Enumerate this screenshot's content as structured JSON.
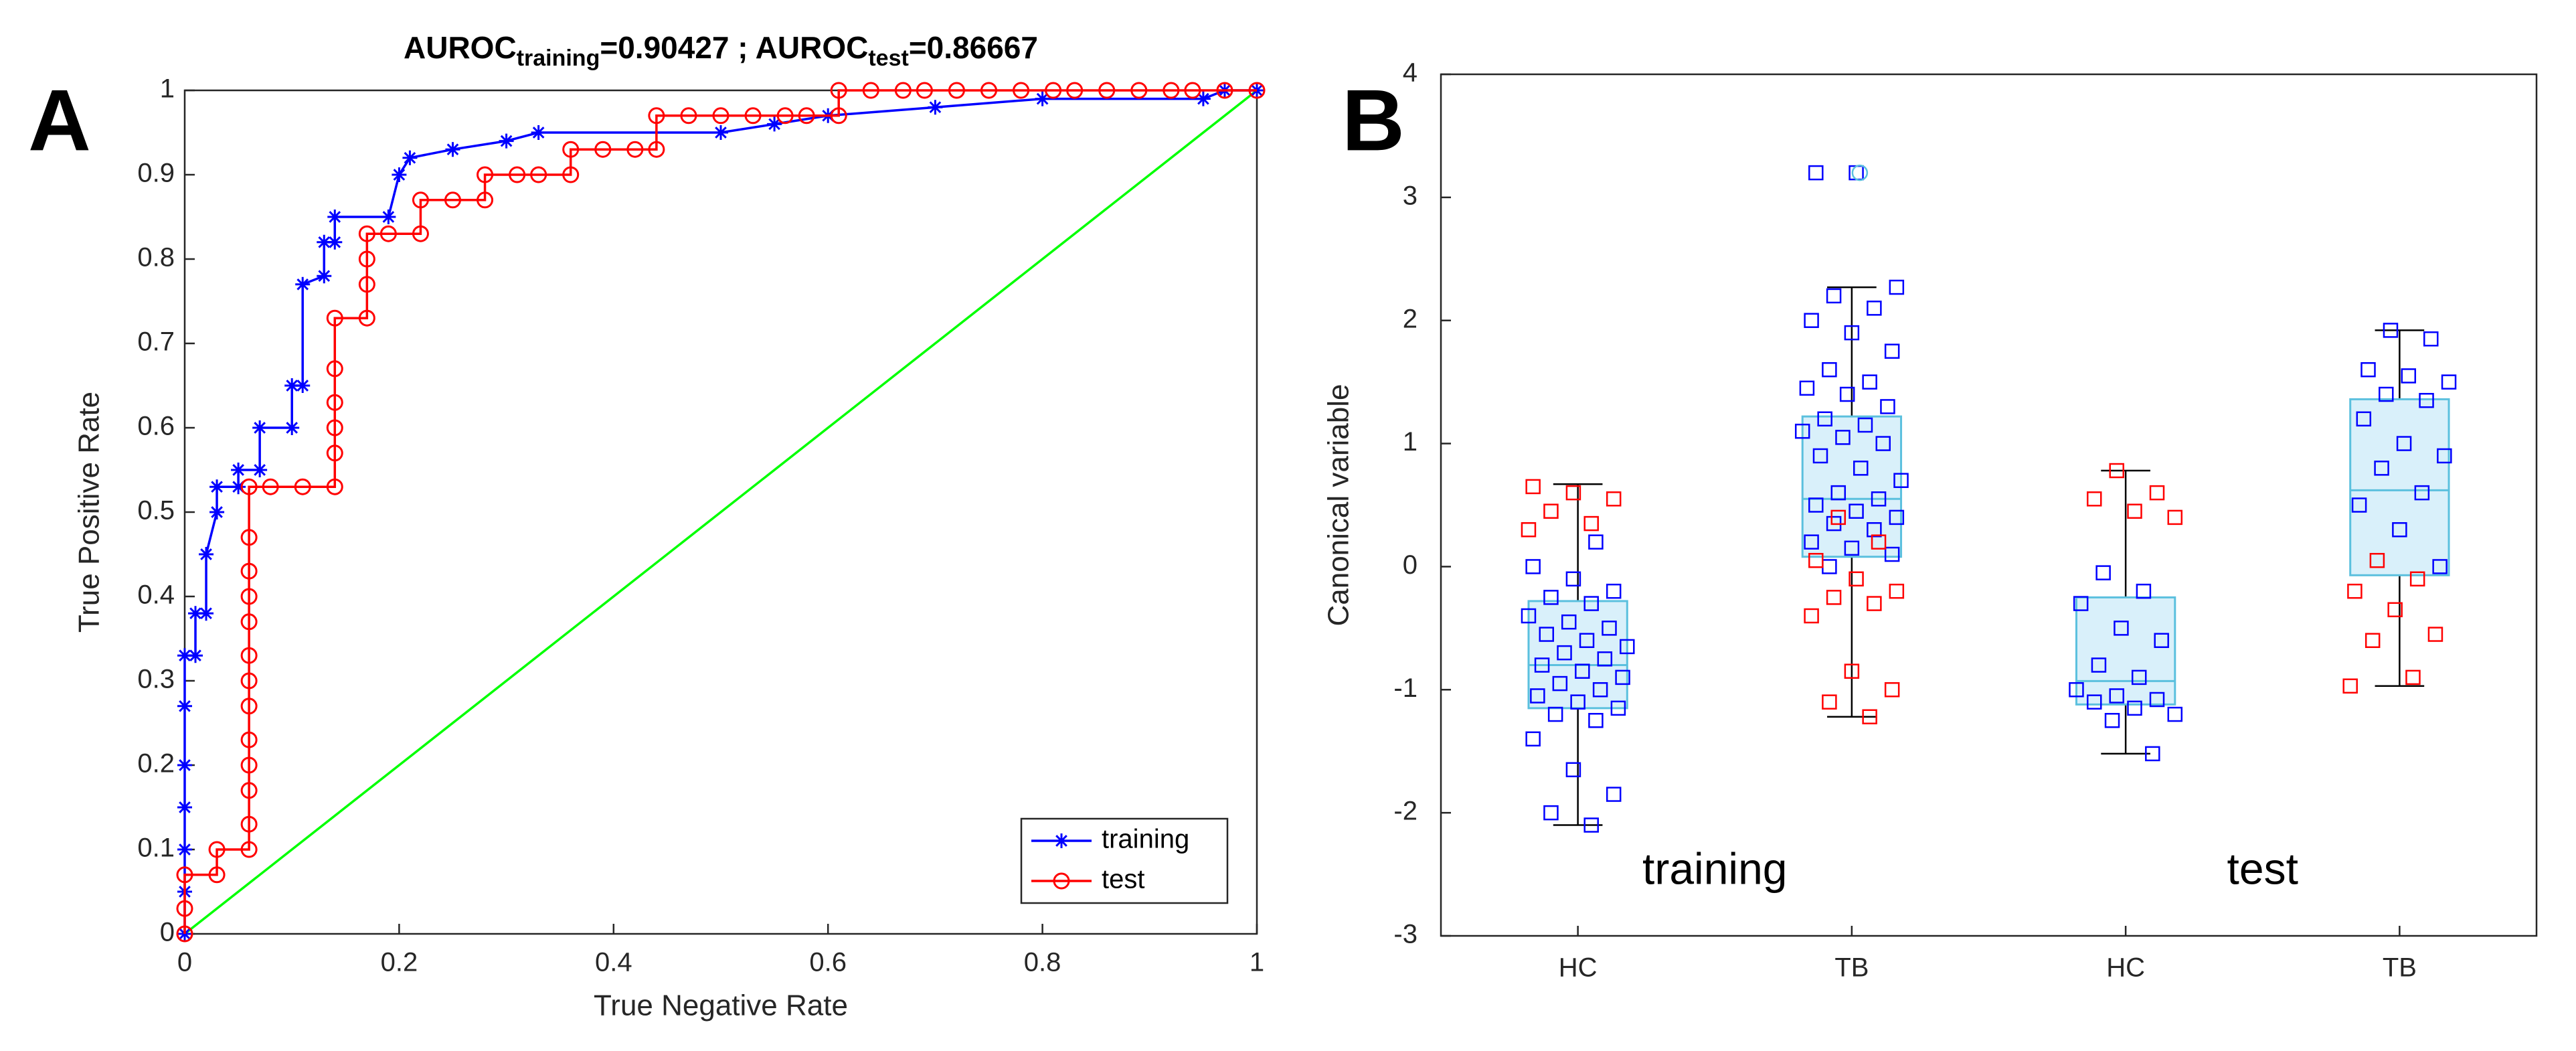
{
  "chart_data": [
    {
      "type": "line",
      "annotation": "A",
      "title": [
        "AUROC",
        "training",
        "=0.90427 ; AUROC",
        "test",
        "=0.86667"
      ],
      "xlabel": "True Negative Rate",
      "ylabel": "True Positive Rate",
      "xlim": [
        0,
        1
      ],
      "ylim": [
        0,
        1
      ],
      "xticks": [
        0,
        0.2,
        0.4,
        0.6,
        0.8,
        1
      ],
      "yticks": [
        0,
        0.1,
        0.2,
        0.3,
        0.4,
        0.5,
        0.6,
        0.7,
        0.8,
        0.9,
        1
      ],
      "legend": "lower right",
      "series": [
        {
          "name": "training",
          "color": "#0000ff",
          "marker": "star",
          "x": [
            0,
            0,
            0,
            0,
            0,
            0,
            0,
            0.01,
            0.01,
            0.02,
            0.02,
            0.03,
            0.03,
            0.05,
            0.05,
            0.07,
            0.07,
            0.1,
            0.1,
            0.11,
            0.11,
            0.13,
            0.13,
            0.14,
            0.14,
            0.19,
            0.2,
            0.21,
            0.25,
            0.3,
            0.33,
            0.5,
            0.55,
            0.6,
            0.7,
            0.8,
            0.95,
            0.97,
            1
          ],
          "values": [
            0,
            0.05,
            0.1,
            0.15,
            0.2,
            0.27,
            0.33,
            0.33,
            0.38,
            0.38,
            0.45,
            0.5,
            0.53,
            0.53,
            0.55,
            0.55,
            0.6,
            0.6,
            0.65,
            0.65,
            0.77,
            0.78,
            0.82,
            0.82,
            0.85,
            0.85,
            0.9,
            0.92,
            0.93,
            0.94,
            0.95,
            0.95,
            0.96,
            0.97,
            0.98,
            0.99,
            0.99,
            1,
            1
          ]
        },
        {
          "name": "test",
          "color": "#ff0000",
          "marker": "circle",
          "x": [
            0,
            0,
            0,
            0.03,
            0.03,
            0.06,
            0.06,
            0.06,
            0.06,
            0.06,
            0.06,
            0.06,
            0.06,
            0.06,
            0.06,
            0.06,
            0.06,
            0.06,
            0.08,
            0.11,
            0.14,
            0.14,
            0.14,
            0.14,
            0.14,
            0.14,
            0.17,
            0.17,
            0.17,
            0.17,
            0.19,
            0.22,
            0.22,
            0.25,
            0.28,
            0.28,
            0.31,
            0.33,
            0.36,
            0.36,
            0.39,
            0.42,
            0.44,
            0.44,
            0.47,
            0.5,
            0.53,
            0.56,
            0.58,
            0.61,
            0.61,
            0.64,
            0.67,
            0.69,
            0.72,
            0.75,
            0.78,
            0.81,
            0.83,
            0.86,
            0.89,
            0.92,
            0.94,
            0.97,
            1
          ],
          "values": [
            0,
            0.03,
            0.07,
            0.07,
            0.1,
            0.1,
            0.13,
            0.17,
            0.2,
            0.23,
            0.27,
            0.3,
            0.33,
            0.37,
            0.4,
            0.43,
            0.47,
            0.53,
            0.53,
            0.53,
            0.53,
            0.57,
            0.6,
            0.63,
            0.67,
            0.73,
            0.73,
            0.77,
            0.8,
            0.83,
            0.83,
            0.83,
            0.87,
            0.87,
            0.87,
            0.9,
            0.9,
            0.9,
            0.9,
            0.93,
            0.93,
            0.93,
            0.93,
            0.97,
            0.97,
            0.97,
            0.97,
            0.97,
            0.97,
            0.97,
            1,
            1,
            1,
            1,
            1,
            1,
            1,
            1,
            1,
            1,
            1,
            1,
            1,
            1,
            1
          ]
        }
      ],
      "reference_line": {
        "color": "#00ff00",
        "x": [
          0,
          1
        ],
        "values": [
          0,
          1
        ]
      }
    },
    {
      "type": "box",
      "annotation": "B",
      "ylabel": "Canonical variable",
      "categories": [
        "HC",
        "TB",
        "HC",
        "TB"
      ],
      "group_labels": [
        "training",
        "test"
      ],
      "ylim": [
        -3,
        4
      ],
      "yticks": [
        -3,
        -2,
        -1,
        0,
        1,
        2,
        3,
        4
      ],
      "box_color": "#5bc0de",
      "box_fill": "#d9f0fa",
      "q1": [
        -1.15,
        0.08,
        -1.12,
        -0.07
      ],
      "median": [
        -0.8,
        0.55,
        -0.93,
        0.62
      ],
      "q3": [
        -0.28,
        1.22,
        -0.25,
        1.36
      ],
      "whisker_low": [
        -2.1,
        -1.22,
        -1.52,
        -0.97
      ],
      "whisker_high": [
        0.67,
        2.27,
        0.78,
        1.92
      ],
      "outliers": [
        [],
        [
          3.2
        ],
        [],
        []
      ],
      "points": [
        {
          "color": "#0000ff",
          "values": [
            [
              -2.1,
              -2.0,
              -1.85,
              -1.65,
              -1.4,
              -1.25,
              -1.2,
              -1.15,
              -1.1,
              -1.05,
              -1.0,
              -0.95,
              -0.9,
              -0.85,
              -0.8,
              -0.75,
              -0.7,
              -0.65,
              -0.6,
              -0.55,
              -0.5,
              -0.45,
              -0.4,
              -0.3,
              -0.25,
              -0.2,
              -0.1,
              0.0,
              0.2
            ],
            [
              0.0,
              0.1,
              0.15,
              0.2,
              0.3,
              0.35,
              0.4,
              0.45,
              0.5,
              0.55,
              0.6,
              0.7,
              0.8,
              0.9,
              1.0,
              1.05,
              1.1,
              1.15,
              1.2,
              1.3,
              1.4,
              1.45,
              1.5,
              1.6,
              1.75,
              1.9,
              2.0,
              2.1,
              2.2,
              2.27,
              3.2,
              3.2
            ],
            [
              -1.52,
              -1.25,
              -1.2,
              -1.15,
              -1.1,
              -1.08,
              -1.05,
              -1.0,
              -0.9,
              -0.8,
              -0.6,
              -0.5,
              -0.3,
              -0.2,
              -0.05
            ],
            [
              0.0,
              0.3,
              0.5,
              0.6,
              0.8,
              0.9,
              1.0,
              1.2,
              1.35,
              1.4,
              1.5,
              1.55,
              1.6,
              1.85,
              1.92
            ]
          ]
        },
        {
          "color": "#ff0000",
          "values": [
            [
              0.3,
              0.35,
              0.45,
              0.55,
              0.6,
              0.65
            ],
            [
              -1.22,
              -1.1,
              -1.0,
              -0.85,
              -0.4,
              -0.3,
              -0.25,
              -0.2,
              -0.1,
              0.05,
              0.2,
              0.4
            ],
            [
              0.4,
              0.45,
              0.55,
              0.6,
              0.78
            ],
            [
              -0.97,
              -0.9,
              -0.6,
              -0.55,
              -0.35,
              -0.2,
              -0.1,
              0.05
            ]
          ]
        }
      ]
    }
  ]
}
